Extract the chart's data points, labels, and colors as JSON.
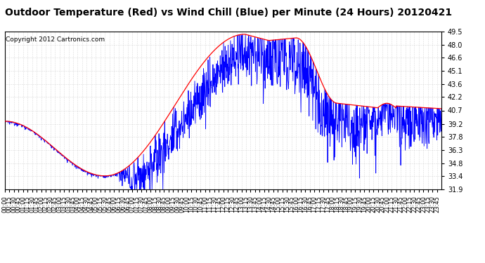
{
  "title": "Outdoor Temperature (Red) vs Wind Chill (Blue) per Minute (24 Hours) 20120421",
  "copyright": "Copyright 2012 Cartronics.com",
  "ylim": [
    31.9,
    49.5
  ],
  "yticks": [
    31.9,
    33.4,
    34.8,
    36.3,
    37.8,
    39.2,
    40.7,
    42.2,
    43.6,
    45.1,
    46.6,
    48.0,
    49.5
  ],
  "bg_color": "#ffffff",
  "grid_color": "#bbbbbb",
  "red_color": "#ff0000",
  "blue_color": "#0000ff",
  "title_fontsize": 10,
  "copyright_fontsize": 6.5,
  "tick_fontsize": 6,
  "ytick_fontsize": 7
}
